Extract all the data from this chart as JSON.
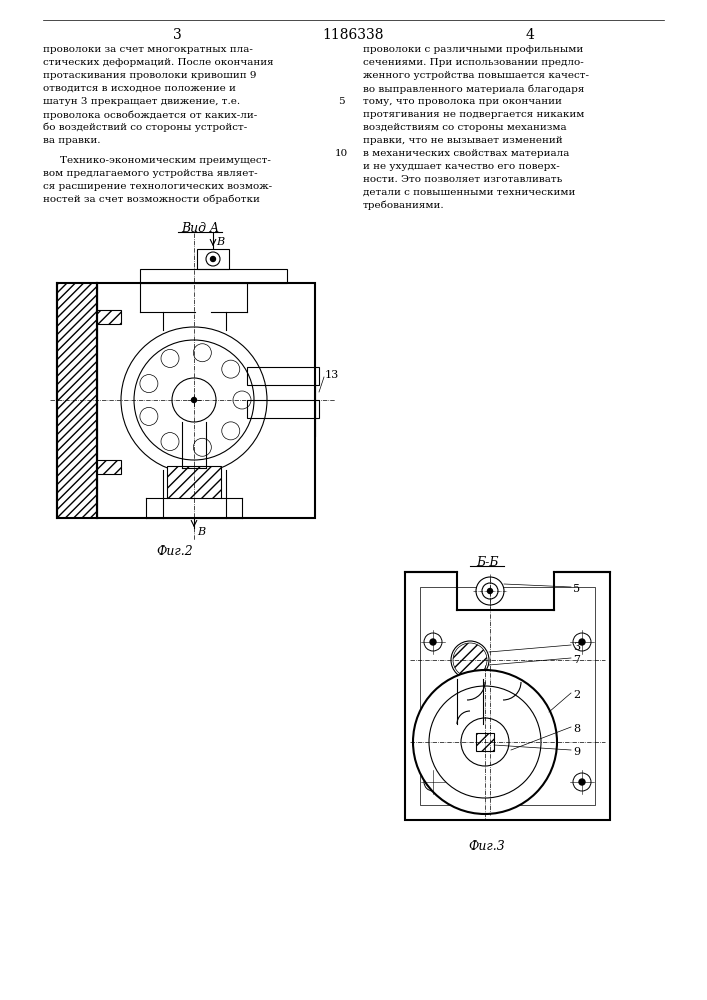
{
  "page_width": 7.07,
  "page_height": 10.0,
  "bg_color": "#ffffff",
  "text_color": "#000000",
  "patent_number": "1186338",
  "page_num_left": "3",
  "page_num_right": "4",
  "fig2_label": "Фиг.2",
  "fig3_label": "Фиг.3",
  "vid_a_label": "Вид A",
  "bb_label": "Б-Б",
  "arrow_b": "В",
  "label_13": "13",
  "labels_fig3": [
    "5",
    "3",
    "7",
    "2",
    "8",
    "9"
  ]
}
